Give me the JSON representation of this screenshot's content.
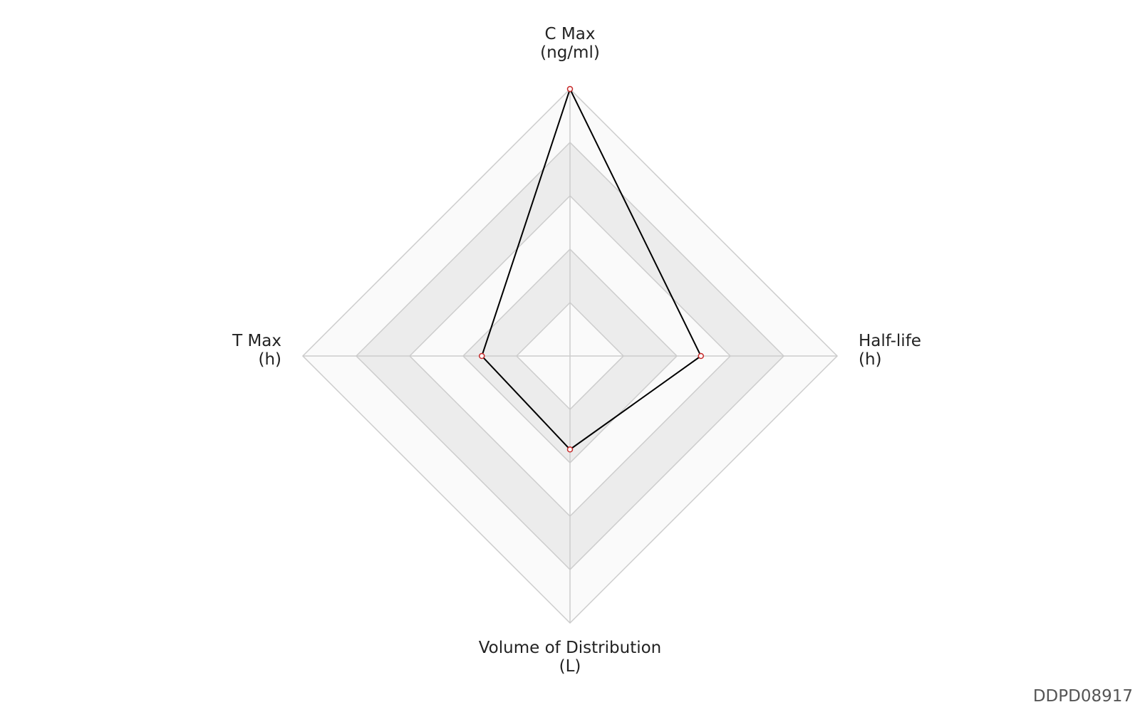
{
  "chart_data": {
    "type": "radar",
    "categories": [
      "C Max",
      "Half-life",
      "Volume of Distribution",
      "T Max"
    ],
    "units": [
      "(ng/ml)",
      "(h)",
      "(L)",
      "(h)"
    ],
    "series": [
      {
        "color": "#000000",
        "marker_color": "#c62828",
        "values": [
          1.0,
          0.49,
          0.35,
          0.33
        ]
      }
    ],
    "ylim": [
      0,
      1
    ],
    "yticks": [
      0.2,
      0.4,
      0.6,
      0.8,
      1.0
    ],
    "grid": true,
    "band_colors": [
      "#fafafa",
      "#ececec"
    ],
    "watermark": "DDPD08917"
  }
}
